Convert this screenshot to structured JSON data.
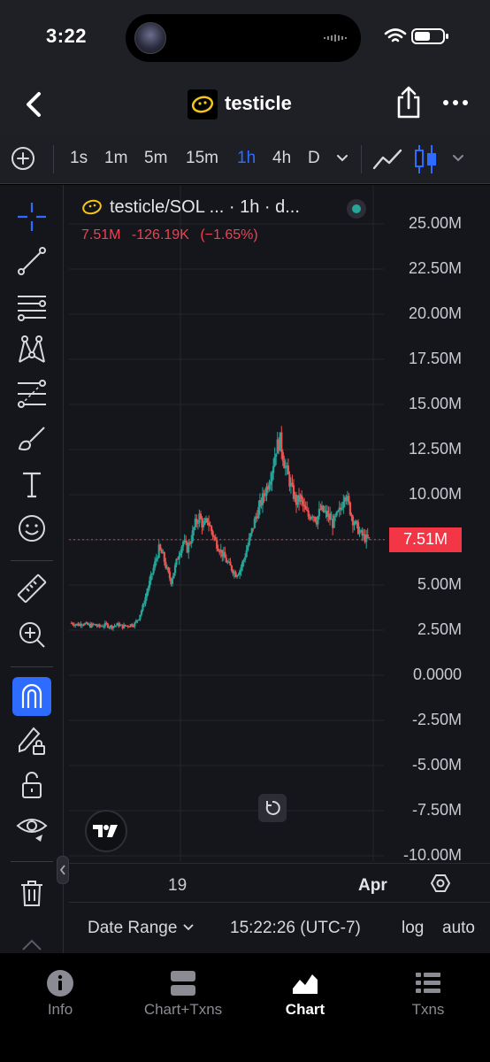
{
  "status": {
    "time": "3:22"
  },
  "header": {
    "title": "testicle"
  },
  "timeframes": [
    {
      "label": "1s",
      "active": false
    },
    {
      "label": "1m",
      "active": false
    },
    {
      "label": "5m",
      "active": false
    },
    {
      "label": "15m",
      "active": false
    },
    {
      "label": "1h",
      "active": true
    },
    {
      "label": "4h",
      "active": false
    },
    {
      "label": "D",
      "active": false
    }
  ],
  "legend": {
    "pair": "testicle/SOL ...  · 1h · d...",
    "close": "7.51M",
    "change": "-126.19K",
    "change_pct": "(−1.65%)"
  },
  "price_tag": "7.51M",
  "colors": {
    "up": "#26a69a",
    "down": "#ef5350",
    "accent": "#2e6bff",
    "price_tag": "#f23645"
  },
  "tools": [
    "crosshair-icon",
    "trendline-icon",
    "parallel-lines-icon",
    "pattern-icon",
    "fib-icon",
    "brush-icon",
    "text-icon",
    "emoji-icon",
    "ruler-icon",
    "zoom-in-icon",
    "magnet-icon",
    "lock-drawing-icon",
    "unlock-icon",
    "eye-icon",
    "trash-icon"
  ],
  "footer": {
    "date_range": "Date Range",
    "time": "15:22:26 (UTC-7)",
    "log": "log",
    "auto": "auto"
  },
  "tabs": [
    {
      "label": "Info",
      "active": false
    },
    {
      "label": "Chart+Txns",
      "active": false
    },
    {
      "label": "Chart",
      "active": true
    },
    {
      "label": "Txns",
      "active": false
    }
  ],
  "chart_data": {
    "type": "candlestick",
    "y_unit": "market cap",
    "y_ticks": [
      "25.00M",
      "22.50M",
      "20.00M",
      "17.50M",
      "15.00M",
      "12.50M",
      "10.00M",
      "7.50M",
      "5.00M",
      "2.50M",
      "0.0000",
      "-2.50M",
      "-5.00M",
      "-7.50M",
      "-10.00M"
    ],
    "ylim": [
      -10000000,
      26500000
    ],
    "x_ticks": [
      {
        "label": "19",
        "bold": false
      },
      {
        "label": "Apr",
        "bold": true
      }
    ],
    "last_price": 7510000,
    "close_path": [
      2.9,
      2.85,
      2.8,
      2.9,
      2.8,
      2.75,
      2.8,
      2.7,
      2.75,
      2.8,
      2.7,
      2.75,
      2.8,
      2.7,
      2.75,
      2.8,
      2.85,
      3.2,
      3.8,
      4.6,
      5.4,
      6.2,
      7.0,
      6.6,
      5.8,
      5.2,
      6.0,
      6.8,
      7.4,
      7.0,
      7.6,
      8.4,
      8.8,
      8.2,
      8.6,
      8.0,
      7.4,
      7.0,
      6.6,
      6.2,
      5.9,
      5.6,
      5.8,
      6.4,
      7.2,
      8.0,
      8.8,
      9.4,
      10.0,
      10.6,
      11.4,
      12.6,
      13.0,
      11.8,
      11.0,
      10.2,
      9.6,
      9.8,
      9.2,
      8.8,
      9.0,
      8.6,
      9.2,
      9.0,
      8.8,
      8.4,
      8.8,
      9.2,
      10.2,
      9.4,
      8.6,
      8.2,
      7.8,
      7.6,
      7.51
    ]
  }
}
